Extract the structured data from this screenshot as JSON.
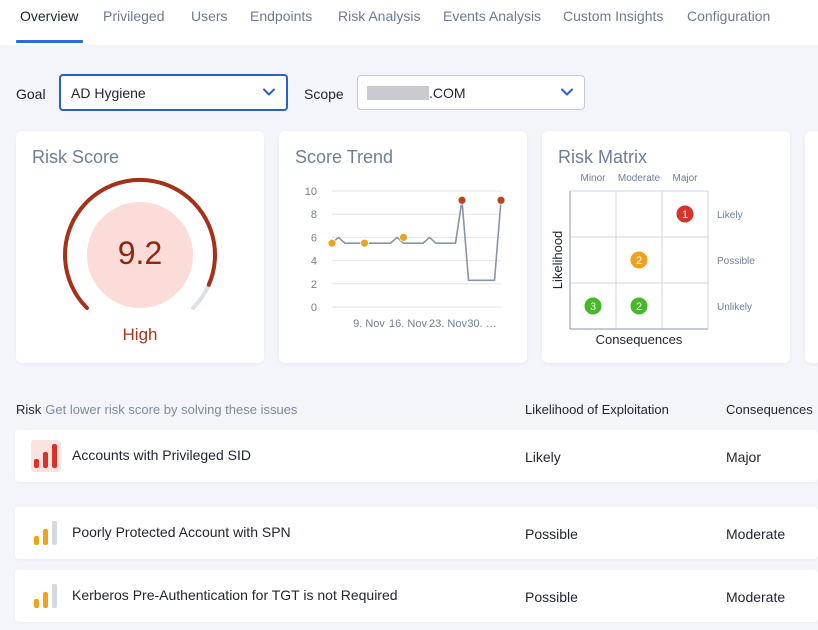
{
  "nav": {
    "tabs": [
      {
        "label": "Overview",
        "active": true
      },
      {
        "label": "Privileged"
      },
      {
        "label": "Users"
      },
      {
        "label": "Endpoints"
      },
      {
        "label": "Risk Analysis"
      },
      {
        "label": "Events Analysis"
      },
      {
        "label": "Custom Insights"
      },
      {
        "label": "Configuration"
      }
    ]
  },
  "filters": {
    "goal_label": "Goal",
    "goal_value": "AD Hygiene",
    "scope_label": "Scope",
    "scope_value": ".COM"
  },
  "risk_score": {
    "title": "Risk Score",
    "value": "9.2",
    "fraction": 0.92,
    "level": "High",
    "colors": {
      "fill": "#fbdcd8",
      "arc": "#a4321b",
      "track": "#dde1e7",
      "text": "#8b2a12"
    }
  },
  "score_trend": {
    "title": "Score Trend",
    "chart_data": {
      "type": "line",
      "ylim": [
        0,
        10
      ],
      "y_ticks": [
        "10",
        "8",
        "6",
        "4",
        "2",
        "0"
      ],
      "x_ticks": [
        "9. Nov",
        "16. Nov",
        "23. Nov",
        "30. …"
      ],
      "values": [
        5.5,
        6.0,
        5.5,
        5.5,
        5.5,
        5.5,
        5.5,
        5.5,
        5.5,
        5.5,
        6.0,
        5.5,
        5.5,
        5.5,
        5.5,
        6.0,
        5.5,
        5.5,
        5.5,
        5.5,
        9.2,
        2.3,
        2.3,
        2.3,
        2.3,
        2.3,
        9.2
      ],
      "markers": [
        {
          "index": 0,
          "value": 5.5,
          "color": "#e7a523"
        },
        {
          "index": 5,
          "value": 5.5,
          "color": "#e7a523"
        },
        {
          "index": 11,
          "value": 6.0,
          "color": "#e7a523"
        },
        {
          "index": 20,
          "value": 9.2,
          "color": "#b4451f"
        },
        {
          "index": 26,
          "value": 9.2,
          "color": "#b4451f"
        }
      ],
      "line_color": "#8a93a6"
    }
  },
  "risk_matrix": {
    "title": "Risk Matrix",
    "columns": [
      "Minor",
      "Moderate",
      "Major"
    ],
    "rows": [
      "Likely",
      "Possible",
      "Unlikely"
    ],
    "y_axis": "Likelihood",
    "x_axis": "Consequences",
    "cells": [
      {
        "row": "Likely",
        "col": "Major",
        "count": "1",
        "color": "#d9322a"
      },
      {
        "row": "Possible",
        "col": "Moderate",
        "count": "2",
        "color": "#f0a21f"
      },
      {
        "row": "Unlikely",
        "col": "Minor",
        "count": "3",
        "color": "#46b82a"
      },
      {
        "row": "Unlikely",
        "col": "Moderate",
        "count": "2",
        "color": "#46b82a"
      }
    ]
  },
  "risk_table": {
    "header_risk": "Risk",
    "header_hint": "Get lower risk score by solving these issues",
    "header_likelihood": "Likelihood of Exploitation",
    "header_consequences": "Consequences",
    "rows": [
      {
        "name": "Accounts with Privileged SID",
        "likelihood": "Likely",
        "consequences": "Major",
        "severity": 3
      },
      {
        "name": "Poorly Protected Account with SPN",
        "likelihood": "Possible",
        "consequences": "Moderate",
        "severity": 2
      },
      {
        "name": "Kerberos Pre-Authentication for TGT is not Required",
        "likelihood": "Possible",
        "consequences": "Moderate",
        "severity": 2
      }
    ]
  },
  "severity_colors": {
    "3": "#d9322a",
    "2": "#f0a21f",
    "empty": "#d5d9e0",
    "highlight": "#fbe3e0"
  }
}
